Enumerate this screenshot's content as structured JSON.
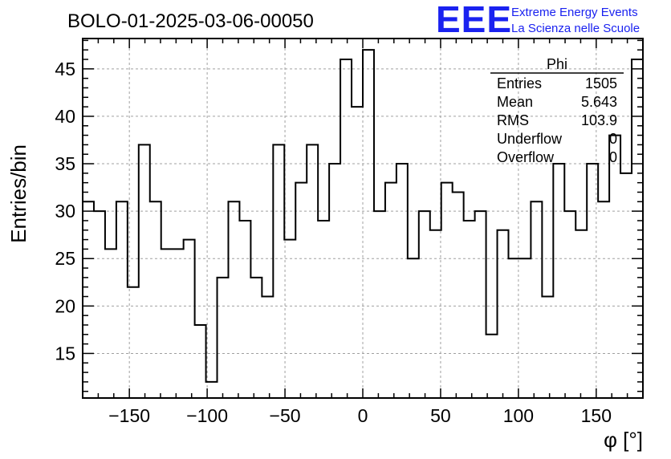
{
  "title": "BOLO-01-2025-03-06-00050",
  "logo": {
    "mark": "EEE",
    "line1": "Extreme Energy Events",
    "line2": "La Scienza nelle Scuole",
    "color": "#1a22f0"
  },
  "stats": {
    "name": "Phi",
    "rows": [
      {
        "label": "Entries",
        "value": "1505"
      },
      {
        "label": "Mean",
        "value": "5.643"
      },
      {
        "label": "RMS",
        "value": "103.9"
      },
      {
        "label": "Underflow",
        "value": "0"
      },
      {
        "label": "Overflow",
        "value": "0"
      }
    ]
  },
  "chart_data": {
    "type": "histogram",
    "title": "BOLO-01-2025-03-06-00050",
    "xlabel": "φ [°]",
    "ylabel": "Entries/bin",
    "xlim": [
      -180,
      180
    ],
    "ylim": [
      10.3,
      48.2
    ],
    "xticks": [
      -150,
      -100,
      -50,
      0,
      50,
      100,
      150
    ],
    "yticks": [
      15,
      20,
      25,
      30,
      35,
      40,
      45
    ],
    "grid": true,
    "bin_width": 7.2,
    "bin_edges_start": -180,
    "values": [
      31,
      30,
      26,
      31,
      22,
      37,
      31,
      26,
      26,
      27,
      18,
      12,
      23,
      31,
      29,
      23,
      21,
      37,
      27,
      33,
      37,
      29,
      35,
      46,
      41,
      47,
      30,
      33,
      35,
      25,
      30,
      28,
      33,
      32,
      29,
      30,
      17,
      28,
      25,
      25,
      31,
      21,
      35,
      30,
      28,
      35,
      31,
      38,
      34,
      46
    ]
  }
}
